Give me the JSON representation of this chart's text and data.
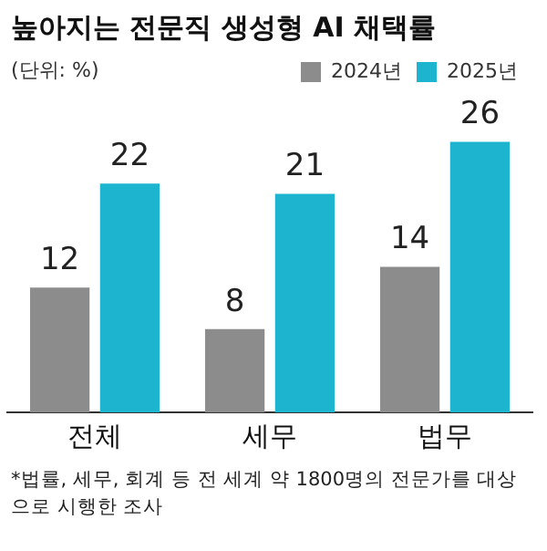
{
  "chart_data": {
    "type": "bar",
    "title": "높아지는 전문직 생성형 AI 채택률",
    "subtitle": "(단위: %)",
    "categories": [
      "전체",
      "세무",
      "법무"
    ],
    "series": [
      {
        "name": "2024년",
        "color": "#8c8c8c",
        "values": [
          12,
          8,
          14
        ]
      },
      {
        "name": "2025년",
        "color": "#1cb4cf",
        "values": [
          22,
          21,
          26
        ]
      }
    ],
    "data_labels": true,
    "grid": false,
    "legend": "top right",
    "tick_labels": "x",
    "annotations": [
      "*법률, 세무, 회계 등 전 세계 약 1800명의 전문가를 대상으로 시행한 조사"
    ]
  }
}
